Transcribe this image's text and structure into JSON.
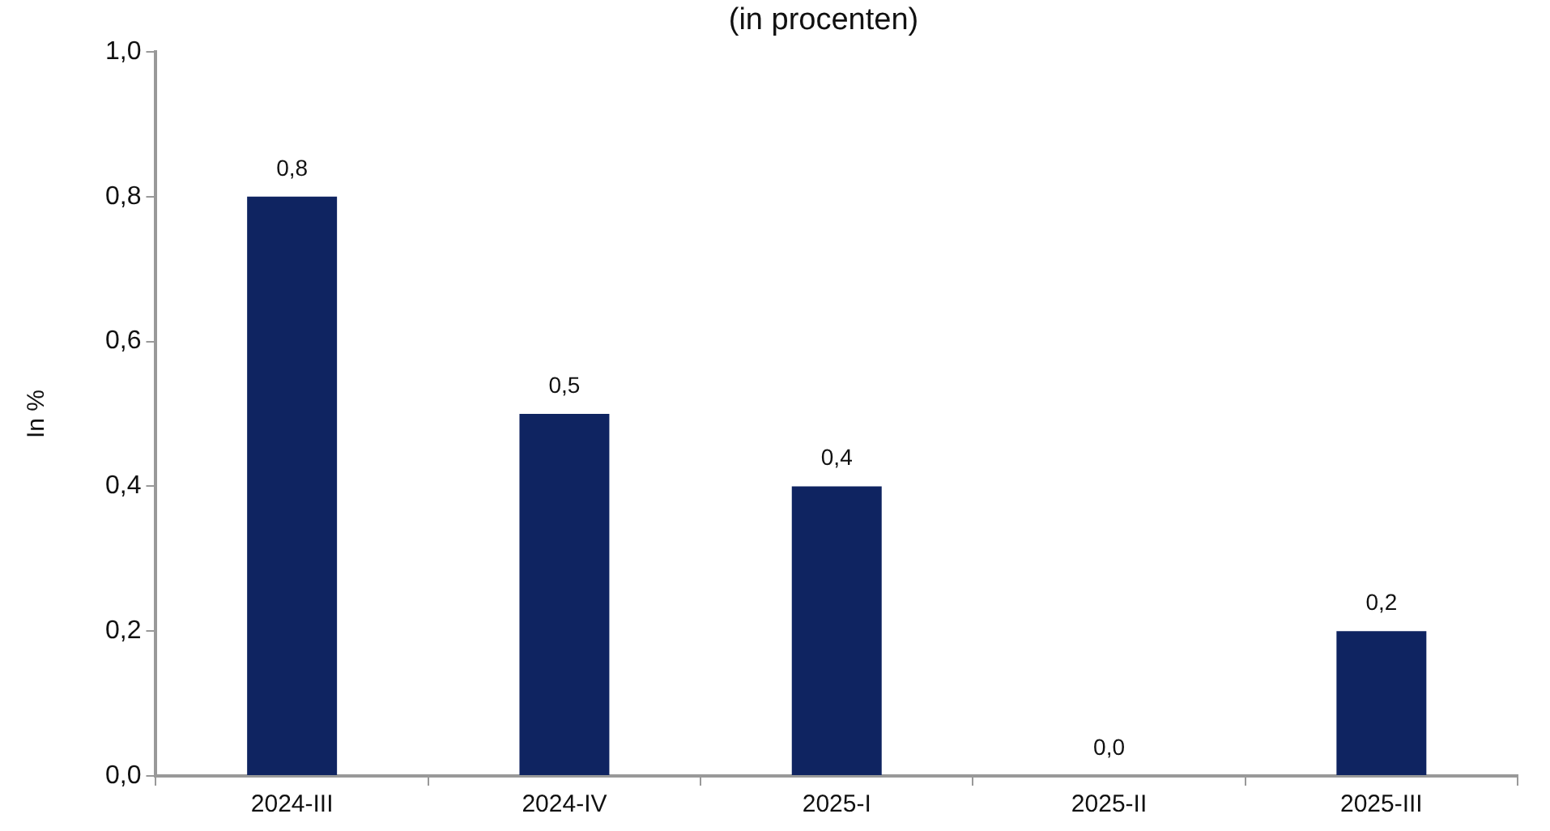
{
  "chart_data": {
    "type": "bar",
    "title": "(in procenten)",
    "ylabel": "In %",
    "categories": [
      "2024-III",
      "2024-IV",
      "2025-I",
      "2025-II",
      "2025-III"
    ],
    "values": [
      0.8,
      0.5,
      0.4,
      0,
      0.2
    ],
    "value_labels": [
      "0,8",
      "0,5",
      "0,4",
      "0,0",
      "0,2"
    ],
    "color": "#0f2461",
    "ylim": [
      0,
      1
    ],
    "yticks": [
      {
        "value": 0,
        "label": "0,0"
      },
      {
        "value": 0.2,
        "label": "0,2"
      },
      {
        "value": 0.4,
        "label": "0,4"
      },
      {
        "value": 0.6,
        "label": "0,6"
      },
      {
        "value": 0.8,
        "label": "0,8"
      },
      {
        "value": 1,
        "label": "1,0"
      }
    ],
    "grid": false,
    "legend": false
  }
}
